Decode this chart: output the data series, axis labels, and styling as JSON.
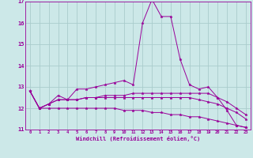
{
  "xlabel": "Windchill (Refroidissement éolien,°C)",
  "ylabel": "",
  "background_color": "#cce8e8",
  "line_color": "#990099",
  "grid_color": "#aacccc",
  "xmin": 0,
  "xmax": 23,
  "ymin": 11,
  "ymax": 17,
  "series": [
    [
      12.8,
      12.0,
      12.2,
      12.6,
      12.4,
      12.9,
      12.9,
      13.0,
      13.1,
      13.2,
      13.3,
      13.1,
      16.0,
      17.1,
      16.3,
      16.3,
      14.3,
      13.1,
      12.9,
      13.0,
      12.5,
      11.9,
      11.2,
      11.1
    ],
    [
      12.8,
      12.0,
      12.2,
      12.4,
      12.4,
      12.4,
      12.5,
      12.5,
      12.6,
      12.6,
      12.6,
      12.7,
      12.7,
      12.7,
      12.7,
      12.7,
      12.7,
      12.7,
      12.7,
      12.7,
      12.5,
      12.3,
      12.0,
      11.7
    ],
    [
      12.8,
      12.0,
      12.2,
      12.4,
      12.4,
      12.4,
      12.5,
      12.5,
      12.5,
      12.5,
      12.5,
      12.5,
      12.5,
      12.5,
      12.5,
      12.5,
      12.5,
      12.5,
      12.4,
      12.3,
      12.2,
      12.0,
      11.8,
      11.5
    ],
    [
      12.8,
      12.0,
      12.0,
      12.0,
      12.0,
      12.0,
      12.0,
      12.0,
      12.0,
      12.0,
      11.9,
      11.9,
      11.9,
      11.8,
      11.8,
      11.7,
      11.7,
      11.6,
      11.6,
      11.5,
      11.4,
      11.3,
      11.2,
      11.1
    ]
  ],
  "xtick_labels": [
    "0",
    "1",
    "2",
    "3",
    "4",
    "5",
    "6",
    "7",
    "8",
    "9",
    "10",
    "11",
    "12",
    "13",
    "14",
    "15",
    "16",
    "17",
    "18",
    "19",
    "20",
    "21",
    "22",
    "23"
  ],
  "ytick_labels": [
    "11",
    "12",
    "13",
    "14",
    "15",
    "16",
    "17"
  ]
}
